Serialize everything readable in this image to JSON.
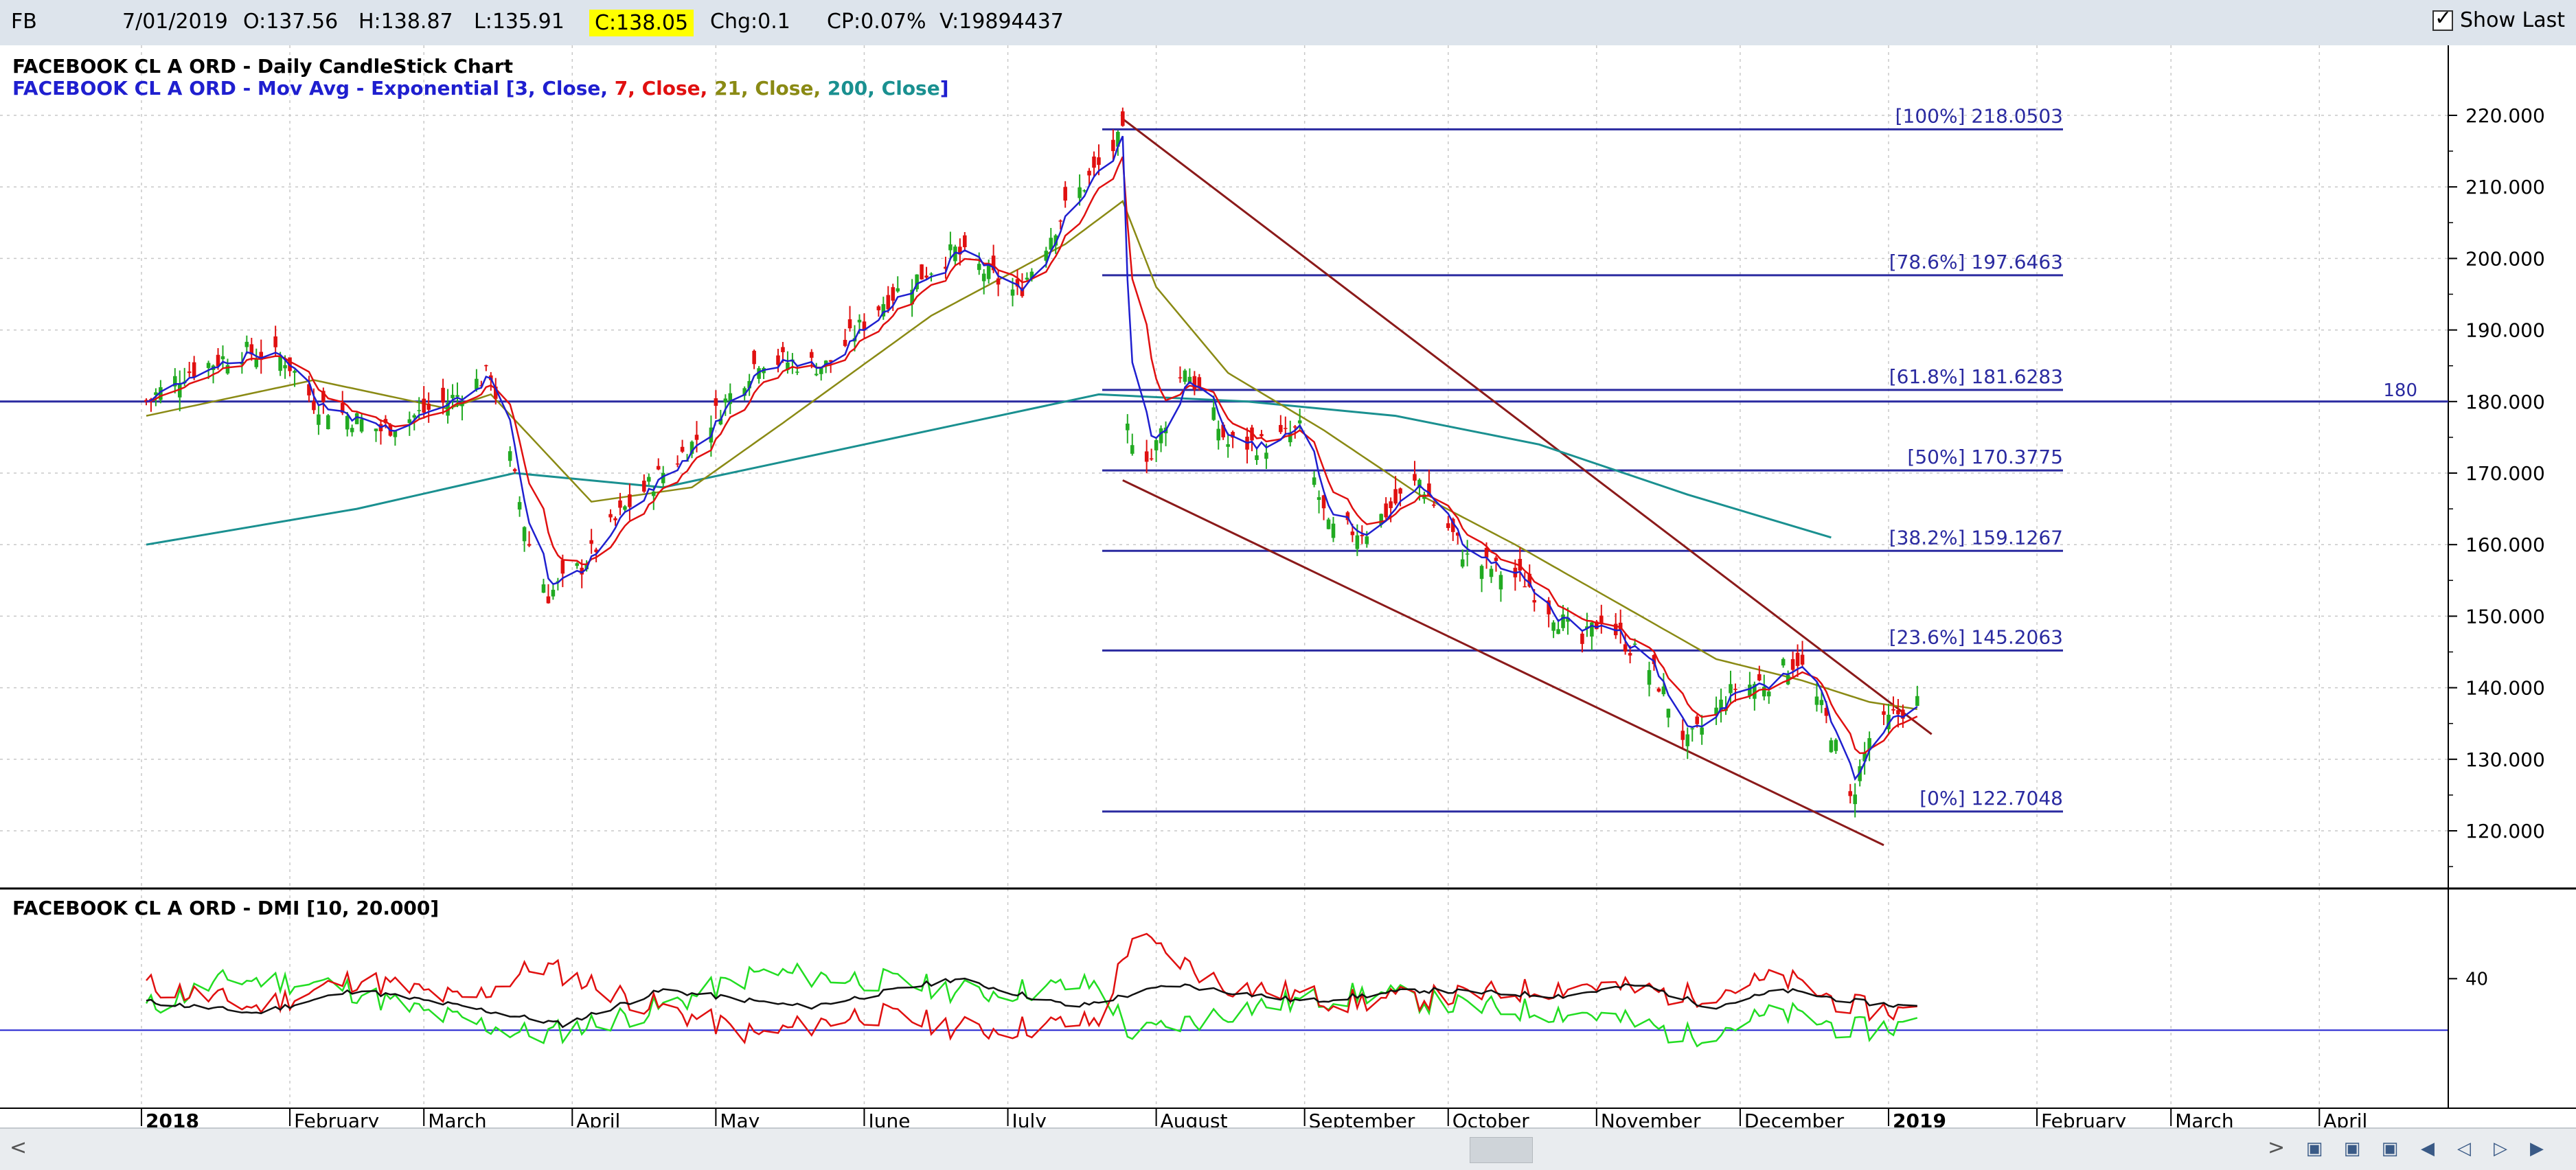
{
  "toolbar": {
    "symbol": "FB",
    "date": "7/01/2019",
    "open": "O:137.56",
    "high": "H:138.87",
    "low": "L:135.91",
    "close": "C:138.05",
    "change": "Chg:0.1",
    "change_pct": "CP:0.07%",
    "volume": "V:19894437",
    "show_last_label": "Show Last",
    "show_last_checked": true
  },
  "price_panel": {
    "title1": "FACEBOOK CL A ORD - Daily CandleStick Chart",
    "title2_prefix": "FACEBOOK CL A ORD - Mov Avg - Exponential [",
    "ma_parts": [
      {
        "text": "3, Close, ",
        "color": "#1f1fcf"
      },
      {
        "text": "7, Close, ",
        "color": "#e01010"
      },
      {
        "text": "21, Close, ",
        "color": "#8a8a14"
      },
      {
        "text": "200, Close",
        "color": "#1a9090"
      }
    ],
    "title2_suffix": "]",
    "hline_label": "180"
  },
  "dmi_panel": {
    "title": "FACEBOOK CL A ORD - DMI [10, 20.000]",
    "level_label": "40"
  },
  "chart_data": {
    "type": "candlestick",
    "symbol": "FB",
    "x_axis_labels": [
      "2018",
      "February",
      "March",
      "April",
      "May",
      "June",
      "July",
      "August",
      "September",
      "October",
      "November",
      "December",
      "2019",
      "February",
      "March",
      "April"
    ],
    "y_ticks": [
      "120.000",
      "130.000",
      "140.000",
      "150.000",
      "160.000",
      "170.000",
      "180.000",
      "190.000",
      "200.000",
      "210.000",
      "220.000"
    ],
    "ylim": [
      114,
      222
    ],
    "grid": true,
    "horizontal_line": 180,
    "fibonacci": [
      {
        "label": "[100%] 218.0503",
        "value": 218.0503
      },
      {
        "label": "[78.6%] 197.6463",
        "value": 197.6463
      },
      {
        "label": "[61.8%] 181.6283",
        "value": 181.6283
      },
      {
        "label": "[50%] 170.3775",
        "value": 170.3775
      },
      {
        "label": "[38.2%] 159.1267",
        "value": 159.1267
      },
      {
        "label": "[23.6%] 145.2063",
        "value": 145.2063
      },
      {
        "label": "[0%] 122.7048",
        "value": 122.7048
      }
    ],
    "channel_lines": [
      {
        "from": [
          "2018-07-25",
          219.5
        ],
        "to": [
          "2019-01-10",
          133.5
        ]
      },
      {
        "from": [
          "2018-07-25",
          169.0
        ],
        "to": [
          "2018-12-31",
          118.0
        ]
      }
    ],
    "close_path": [
      [
        "2018-01-02",
        180
      ],
      [
        "2018-01-10",
        184
      ],
      [
        "2018-01-22",
        187
      ],
      [
        "2018-01-31",
        186
      ],
      [
        "2018-02-06",
        180
      ],
      [
        "2018-02-20",
        176
      ],
      [
        "2018-03-06",
        180
      ],
      [
        "2018-03-15",
        184
      ],
      [
        "2018-03-23",
        160
      ],
      [
        "2018-03-27",
        153
      ],
      [
        "2018-04-03",
        157
      ],
      [
        "2018-04-12",
        165
      ],
      [
        "2018-04-26",
        174
      ],
      [
        "2018-05-10",
        186
      ],
      [
        "2018-05-24",
        185
      ],
      [
        "2018-06-05",
        194
      ],
      [
        "2018-06-20",
        201
      ],
      [
        "2018-07-03",
        195
      ],
      [
        "2018-07-13",
        207
      ],
      [
        "2018-07-25",
        217
      ],
      [
        "2018-07-26",
        176
      ],
      [
        "2018-07-31",
        172
      ],
      [
        "2018-08-07",
        185
      ],
      [
        "2018-08-16",
        174
      ],
      [
        "2018-08-24",
        174
      ],
      [
        "2018-08-31",
        176
      ],
      [
        "2018-09-06",
        162
      ],
      [
        "2018-09-14",
        162
      ],
      [
        "2018-09-25",
        169
      ],
      [
        "2018-10-05",
        158
      ],
      [
        "2018-10-17",
        155
      ],
      [
        "2018-10-29",
        146
      ],
      [
        "2018-11-02",
        150
      ],
      [
        "2018-11-13",
        142
      ],
      [
        "2018-11-20",
        132
      ],
      [
        "2018-11-30",
        140
      ],
      [
        "2018-12-07",
        141
      ],
      [
        "2018-12-13",
        144
      ],
      [
        "2018-12-20",
        134
      ],
      [
        "2018-12-24",
        124
      ],
      [
        "2018-12-28",
        133
      ],
      [
        "2019-01-04",
        137
      ],
      [
        "2019-01-07",
        138.05
      ]
    ],
    "ema21_path": [
      [
        "2018-01-02",
        178
      ],
      [
        "2018-02-06",
        183
      ],
      [
        "2018-03-06",
        179
      ],
      [
        "2018-03-15",
        181
      ],
      [
        "2018-04-05",
        166
      ],
      [
        "2018-04-26",
        168
      ],
      [
        "2018-05-15",
        177
      ],
      [
        "2018-06-15",
        192
      ],
      [
        "2018-07-13",
        202
      ],
      [
        "2018-07-25",
        208
      ],
      [
        "2018-08-01",
        196
      ],
      [
        "2018-08-16",
        184
      ],
      [
        "2018-09-05",
        176
      ],
      [
        "2018-09-25",
        167
      ],
      [
        "2018-10-15",
        160
      ],
      [
        "2018-11-05",
        152
      ],
      [
        "2018-11-26",
        144
      ],
      [
        "2018-12-14",
        141
      ],
      [
        "2018-12-28",
        138
      ],
      [
        "2019-01-07",
        137
      ]
    ],
    "ema200_path": [
      [
        "2018-01-02",
        160
      ],
      [
        "2018-02-15",
        165
      ],
      [
        "2018-03-20",
        170
      ],
      [
        "2018-04-20",
        168
      ],
      [
        "2018-06-01",
        174
      ],
      [
        "2018-07-20",
        181
      ],
      [
        "2018-08-20",
        180
      ],
      [
        "2018-09-20",
        178
      ],
      [
        "2018-10-20",
        174
      ],
      [
        "2018-11-20",
        167
      ],
      [
        "2018-12-20",
        161
      ]
    ],
    "dmi": {
      "level": 40,
      "ylim": [
        0,
        60
      ],
      "plus_di_path": [
        [
          "2018-01-02",
          30
        ],
        [
          "2018-01-20",
          40
        ],
        [
          "2018-02-10",
          38
        ],
        [
          "2018-03-01",
          28
        ],
        [
          "2018-03-25",
          20
        ],
        [
          "2018-04-20",
          30
        ],
        [
          "2018-05-10",
          42
        ],
        [
          "2018-06-01",
          40
        ],
        [
          "2018-06-25",
          35
        ],
        [
          "2018-07-20",
          38
        ],
        [
          "2018-07-27",
          20
        ],
        [
          "2018-08-20",
          30
        ],
        [
          "2018-09-15",
          35
        ],
        [
          "2018-10-05",
          30
        ],
        [
          "2018-10-30",
          28
        ],
        [
          "2018-11-20",
          20
        ],
        [
          "2018-12-10",
          28
        ],
        [
          "2018-12-25",
          22
        ],
        [
          "2019-01-07",
          24
        ]
      ],
      "minus_di_path": [
        [
          "2018-01-02",
          38
        ],
        [
          "2018-01-25",
          30
        ],
        [
          "2018-02-15",
          40
        ],
        [
          "2018-03-10",
          32
        ],
        [
          "2018-03-25",
          45
        ],
        [
          "2018-04-15",
          32
        ],
        [
          "2018-05-10",
          20
        ],
        [
          "2018-06-01",
          28
        ],
        [
          "2018-06-25",
          22
        ],
        [
          "2018-07-20",
          25
        ],
        [
          "2018-07-27",
          55
        ],
        [
          "2018-08-15",
          38
        ],
        [
          "2018-09-10",
          32
        ],
        [
          "2018-10-05",
          34
        ],
        [
          "2018-10-30",
          38
        ],
        [
          "2018-11-20",
          34
        ],
        [
          "2018-12-10",
          40
        ],
        [
          "2018-12-25",
          30
        ],
        [
          "2019-01-07",
          28
        ]
      ],
      "adx_path": [
        [
          "2018-01-02",
          32
        ],
        [
          "2018-01-25",
          28
        ],
        [
          "2018-02-15",
          36
        ],
        [
          "2018-03-10",
          30
        ],
        [
          "2018-03-30",
          24
        ],
        [
          "2018-04-20",
          36
        ],
        [
          "2018-05-20",
          30
        ],
        [
          "2018-06-20",
          40
        ],
        [
          "2018-07-15",
          30
        ],
        [
          "2018-08-05",
          38
        ],
        [
          "2018-09-01",
          32
        ],
        [
          "2018-09-25",
          36
        ],
        [
          "2018-10-25",
          34
        ],
        [
          "2018-11-10",
          38
        ],
        [
          "2018-11-25",
          30
        ],
        [
          "2018-12-10",
          36
        ],
        [
          "2018-12-25",
          32
        ],
        [
          "2019-01-07",
          30
        ]
      ]
    }
  }
}
